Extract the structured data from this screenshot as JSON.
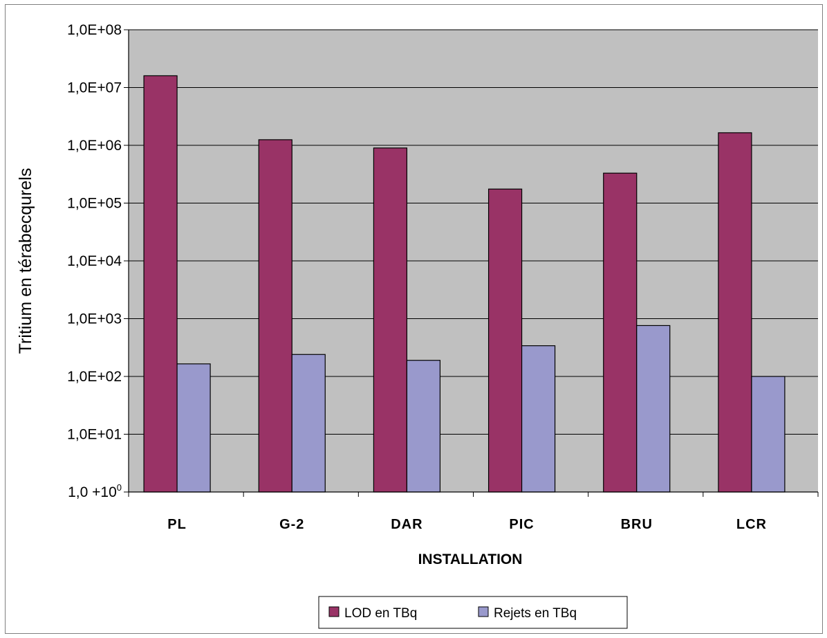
{
  "chart_data": {
    "type": "bar",
    "scale": "log",
    "categories": [
      "PL",
      "G-2",
      "DAR",
      "PIC",
      "BRU",
      "LCR"
    ],
    "series": [
      {
        "name": "LOD en TBq",
        "color": "#993366",
        "values": [
          16000000,
          1250000,
          900000,
          175000,
          330000,
          1650000
        ]
      },
      {
        "name": "Rejets en TBq",
        "color": "#9999cc",
        "values": [
          165,
          240,
          190,
          340,
          760,
          100
        ]
      }
    ],
    "ylim": [
      1,
      100000000
    ],
    "yticks": [
      {
        "value": 1,
        "label": "1,0  +10",
        "sup": "0"
      },
      {
        "value": 10,
        "label": "1,0E+01",
        "sup": ""
      },
      {
        "value": 100,
        "label": "1,0E+02",
        "sup": ""
      },
      {
        "value": 1000,
        "label": "1,0E+03",
        "sup": ""
      },
      {
        "value": 10000,
        "label": "1,0E+04",
        "sup": ""
      },
      {
        "value": 100000,
        "label": "1,0E+05",
        "sup": ""
      },
      {
        "value": 1000000,
        "label": "1,0E+06",
        "sup": ""
      },
      {
        "value": 10000000,
        "label": "1,0E+07",
        "sup": ""
      },
      {
        "value": 100000000,
        "label": "1,0E+08",
        "sup": ""
      }
    ],
    "xlabel": "INSTALLATION",
    "ylabel": "Tritium en térabecqurels",
    "grid": true,
    "plot_background": "#c0c0c0",
    "legend_position": "bottom"
  }
}
